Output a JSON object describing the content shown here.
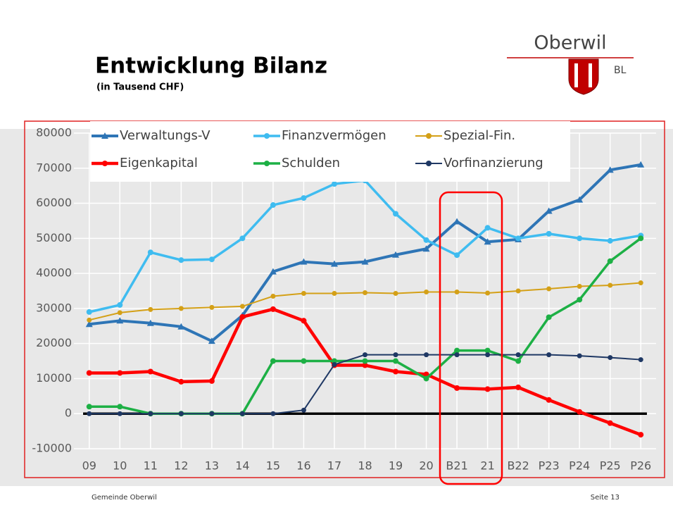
{
  "chart_data": {
    "type": "line",
    "title": "Entwicklung Bilanz",
    "subtitle": "(in Tausend CHF)",
    "categories": [
      "09",
      "10",
      "11",
      "12",
      "13",
      "14",
      "15",
      "16",
      "17",
      "18",
      "19",
      "20",
      "B21",
      "21",
      "B22",
      "P23",
      "P24",
      "P25",
      "P26"
    ],
    "series": [
      {
        "name": "Verwaltungs-V",
        "color": "#2e75b6",
        "marker": "triangle",
        "values": [
          25500,
          26500,
          25800,
          24800,
          20700,
          28000,
          40500,
          43300,
          42700,
          43300,
          45300,
          47000,
          54800,
          49000,
          49700,
          57800,
          61000,
          69500,
          71000
        ]
      },
      {
        "name": "Finanzvermögen",
        "color": "#3fbcf0",
        "marker": "circle",
        "values": [
          29000,
          31000,
          46000,
          43800,
          44000,
          50000,
          59500,
          61500,
          65500,
          66500,
          57000,
          49500,
          45200,
          53000,
          50000,
          51300,
          50000,
          49300,
          50800
        ]
      },
      {
        "name": "Spezial-Fin.",
        "color": "#d4a017",
        "marker": "circle",
        "values": [
          26700,
          28800,
          29700,
          30000,
          30300,
          30600,
          33500,
          34300,
          34300,
          34500,
          34300,
          34700,
          34700,
          34400,
          35000,
          35600,
          36300,
          36600,
          37300
        ]
      },
      {
        "name": "Eigenkapital",
        "color": "#ff0000",
        "marker": "circle",
        "values": [
          11600,
          11600,
          12000,
          9100,
          9300,
          27600,
          29800,
          26500,
          13800,
          13800,
          12000,
          11200,
          7300,
          7000,
          7500,
          3900,
          500,
          -2700,
          -6000
        ]
      },
      {
        "name": "Schulden",
        "color": "#1db045",
        "marker": "circle",
        "values": [
          2000,
          2000,
          0,
          0,
          0,
          0,
          15000,
          15000,
          15000,
          15000,
          15000,
          10000,
          18000,
          18000,
          15000,
          27500,
          32500,
          43500,
          50000
        ]
      },
      {
        "name": "Vorfinanzierung",
        "color": "#1f3864",
        "marker": "circle",
        "values": [
          0,
          0,
          0,
          0,
          0,
          0,
          0,
          1000,
          14000,
          16800,
          16800,
          16800,
          16800,
          16800,
          16800,
          16800,
          16500,
          16000,
          15400
        ]
      }
    ],
    "ylim": [
      -10000,
      80000
    ],
    "yticks": [
      -10000,
      0,
      10000,
      20000,
      30000,
      40000,
      50000,
      60000,
      70000,
      80000
    ],
    "grid": true
  },
  "logo": {
    "name": "Oberwil",
    "region": "BL"
  },
  "footer": {
    "left": "Gemeinde Oberwil",
    "right": "Seite 13"
  }
}
